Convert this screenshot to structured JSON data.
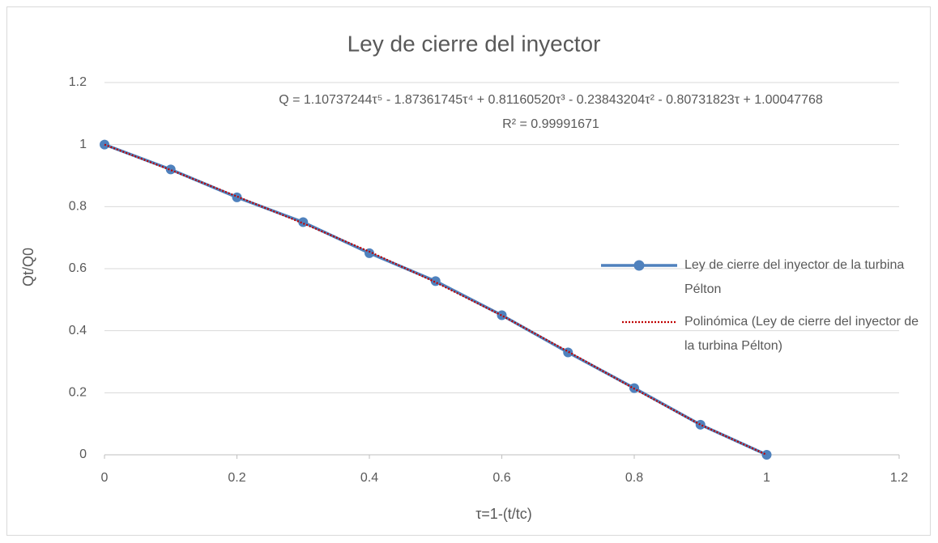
{
  "chart_data": {
    "type": "line",
    "title": "Ley de cierre del inyector",
    "x_label": "τ=1-(t/tc)",
    "y_label": "Qt/Q0",
    "annotations": [
      "Q = 1.10737244τ⁵ - 1.87361745τ⁴ + 0.81160520τ³ - 0.23843204τ² - 0.80731823τ + 1.00047768",
      "R² = 0.99991671"
    ],
    "x": [
      0,
      0.1,
      0.2,
      0.3,
      0.4,
      0.5,
      0.6,
      0.7,
      0.8,
      0.9,
      1
    ],
    "series": [
      {
        "name": "Ley de cierre del inyector de la turbina Pélton",
        "color": "#4f81bd",
        "style": "markers",
        "values": [
          1,
          0.92,
          0.83,
          0.75,
          0.65,
          0.56,
          0.45,
          0.33,
          0.215,
          0.097,
          0
        ]
      },
      {
        "name": "Polinómica (Ley de cierre del inyector de la turbina Pélton)",
        "color": "#c00000",
        "style": "dotted",
        "values": [
          1.0,
          0.918,
          0.833,
          0.746,
          0.655,
          0.556,
          0.449,
          0.333,
          0.213,
          0.097,
          0.0
        ]
      }
    ],
    "xlim": [
      0,
      1.2
    ],
    "xticks": [
      0,
      0.2,
      0.4,
      0.6,
      0.8,
      1,
      1.2
    ],
    "ylim": [
      0,
      1.2
    ],
    "yticks": [
      0,
      0.2,
      0.4,
      0.6,
      0.8,
      1,
      1.2
    ],
    "grid": true,
    "legend": "right"
  }
}
